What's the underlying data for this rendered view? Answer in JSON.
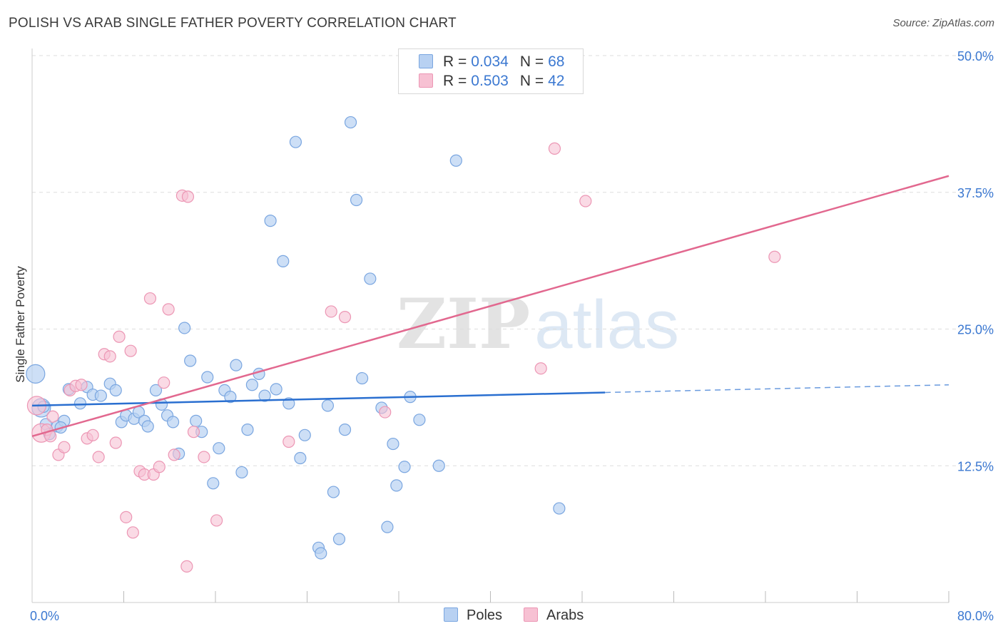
{
  "title": "POLISH VS ARAB SINGLE FATHER POVERTY CORRELATION CHART",
  "source": "Source: ZipAtlas.com",
  "watermark": {
    "zip": "ZIP",
    "atlas": "atlas"
  },
  "legend": {
    "rows": [
      {
        "r_label": "R =",
        "r_value": "0.034",
        "n_label": "N =",
        "n_value": "68"
      },
      {
        "r_label": "R =",
        "r_value": "0.503",
        "n_label": "N =",
        "n_value": "42"
      }
    ]
  },
  "bottom_legend": {
    "poles": "Poles",
    "arabs": "Arabs"
  },
  "colors": {
    "poles_fill": "#b8d1f2",
    "poles_stroke": "#7aa6e0",
    "poles_line": "#2a6fd0",
    "arabs_fill": "#f7c1d3",
    "arabs_stroke": "#ec96b4",
    "arabs_line": "#e2688f",
    "tick_label": "#3b78d1",
    "grid": "#dddddd"
  },
  "chart_data": {
    "type": "scatter",
    "ylabel": "Single Father Poverty",
    "xlabel": "",
    "xlim": [
      0,
      80
    ],
    "ylim": [
      0,
      50
    ],
    "x_tick_labels": [
      "0.0%",
      "80.0%"
    ],
    "y_ticks": [
      12.5,
      25.0,
      37.5,
      50.0
    ],
    "y_tick_labels": [
      "12.5%",
      "25.0%",
      "37.5%",
      "50.0%"
    ],
    "grid": true,
    "series": [
      {
        "name": "Poles",
        "r": 0.034,
        "n": 68,
        "trend": {
          "x0": 0,
          "y0": 18.0,
          "x1": 50,
          "y1": 19.2,
          "dashed_to_x": 80,
          "dashed_to_y": 19.9
        },
        "points": [
          [
            0.3,
            20.9
          ],
          [
            0.8,
            17.8
          ],
          [
            1.2,
            16.3
          ],
          [
            1.5,
            15.4
          ],
          [
            2.2,
            16.1
          ],
          [
            2.8,
            16.6
          ],
          [
            3.2,
            19.5
          ],
          [
            4.2,
            18.2
          ],
          [
            4.8,
            19.7
          ],
          [
            5.3,
            19.0
          ],
          [
            6.0,
            18.9
          ],
          [
            6.8,
            20.0
          ],
          [
            7.3,
            19.4
          ],
          [
            7.8,
            16.5
          ],
          [
            8.2,
            17.1
          ],
          [
            8.9,
            16.8
          ],
          [
            9.3,
            17.4
          ],
          [
            9.8,
            16.6
          ],
          [
            10.1,
            16.1
          ],
          [
            10.8,
            19.4
          ],
          [
            11.3,
            18.1
          ],
          [
            11.8,
            17.1
          ],
          [
            12.3,
            16.5
          ],
          [
            12.8,
            13.6
          ],
          [
            13.3,
            25.1
          ],
          [
            13.8,
            22.1
          ],
          [
            14.3,
            16.6
          ],
          [
            14.8,
            15.6
          ],
          [
            15.3,
            20.6
          ],
          [
            15.8,
            10.9
          ],
          [
            16.3,
            14.1
          ],
          [
            16.8,
            19.4
          ],
          [
            17.3,
            18.8
          ],
          [
            17.8,
            21.7
          ],
          [
            18.3,
            11.9
          ],
          [
            18.8,
            15.8
          ],
          [
            19.2,
            19.9
          ],
          [
            19.8,
            20.9
          ],
          [
            20.3,
            18.9
          ],
          [
            20.8,
            34.9
          ],
          [
            21.3,
            19.5
          ],
          [
            21.9,
            31.2
          ],
          [
            22.4,
            18.2
          ],
          [
            23.0,
            42.1
          ],
          [
            23.4,
            13.2
          ],
          [
            23.8,
            15.3
          ],
          [
            25.0,
            5.0
          ],
          [
            25.2,
            4.5
          ],
          [
            25.8,
            18.0
          ],
          [
            26.3,
            10.1
          ],
          [
            26.8,
            5.8
          ],
          [
            27.3,
            15.8
          ],
          [
            27.8,
            43.9
          ],
          [
            28.3,
            36.8
          ],
          [
            28.8,
            20.5
          ],
          [
            29.5,
            29.6
          ],
          [
            30.5,
            17.8
          ],
          [
            31.0,
            6.9
          ],
          [
            31.5,
            14.5
          ],
          [
            31.8,
            10.7
          ],
          [
            32.5,
            12.4
          ],
          [
            33.0,
            18.8
          ],
          [
            33.8,
            16.7
          ],
          [
            35.5,
            12.5
          ],
          [
            37.0,
            40.4
          ],
          [
            46.0,
            8.6
          ],
          [
            1.0,
            17.9
          ],
          [
            2.5,
            16.0
          ]
        ]
      },
      {
        "name": "Arabs",
        "r": 0.503,
        "n": 42,
        "trend": {
          "x0": 0,
          "y0": 15.2,
          "x1": 80,
          "y1": 39.0
        },
        "points": [
          [
            0.4,
            18.0
          ],
          [
            0.8,
            15.5
          ],
          [
            1.3,
            15.8
          ],
          [
            1.8,
            17.0
          ],
          [
            2.3,
            13.5
          ],
          [
            2.8,
            14.2
          ],
          [
            3.3,
            19.4
          ],
          [
            3.8,
            19.8
          ],
          [
            4.3,
            19.9
          ],
          [
            4.8,
            15.0
          ],
          [
            5.3,
            15.3
          ],
          [
            5.8,
            13.3
          ],
          [
            6.3,
            22.7
          ],
          [
            6.8,
            22.5
          ],
          [
            7.3,
            14.6
          ],
          [
            7.6,
            24.3
          ],
          [
            8.2,
            7.8
          ],
          [
            8.6,
            23.0
          ],
          [
            8.8,
            6.4
          ],
          [
            9.4,
            12.0
          ],
          [
            9.8,
            11.7
          ],
          [
            10.3,
            27.8
          ],
          [
            10.6,
            11.7
          ],
          [
            11.1,
            12.4
          ],
          [
            11.5,
            20.1
          ],
          [
            11.9,
            26.8
          ],
          [
            12.4,
            13.5
          ],
          [
            13.1,
            37.2
          ],
          [
            13.6,
            37.1
          ],
          [
            14.1,
            15.6
          ],
          [
            15.0,
            13.3
          ],
          [
            13.5,
            3.3
          ],
          [
            16.1,
            7.5
          ],
          [
            22.4,
            14.7
          ],
          [
            26.1,
            26.6
          ],
          [
            27.3,
            26.1
          ],
          [
            30.8,
            17.4
          ],
          [
            44.4,
            21.4
          ],
          [
            45.6,
            41.5
          ],
          [
            48.3,
            36.7
          ],
          [
            64.8,
            31.6
          ],
          [
            1.6,
            15.2
          ]
        ]
      }
    ]
  }
}
